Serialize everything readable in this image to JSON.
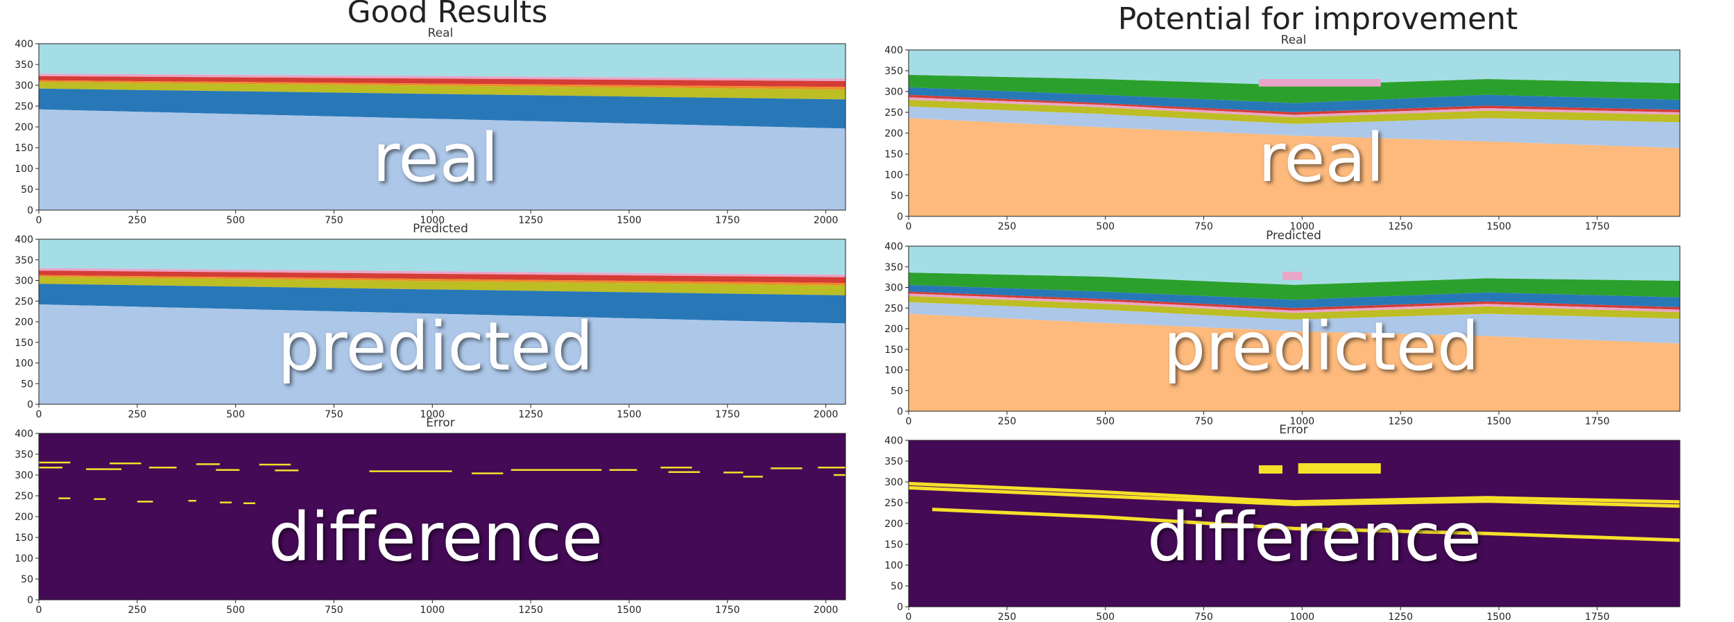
{
  "columns": [
    {
      "title": "Good Results",
      "plots": [
        {
          "subtitle": "Real",
          "overlay": "real"
        },
        {
          "subtitle": "Predicted",
          "overlay": "predicted"
        },
        {
          "subtitle": "Error",
          "overlay": "difference"
        }
      ]
    },
    {
      "title": "Potential for improvement",
      "plots": [
        {
          "subtitle": "Real",
          "overlay": "real"
        },
        {
          "subtitle": "Predicted",
          "overlay": "predicted"
        },
        {
          "subtitle": "Error",
          "overlay": "difference"
        }
      ]
    }
  ],
  "colors": {
    "sky": "#a4dde6",
    "pink": "#e9a5c8",
    "red": "#d43c35",
    "orange": "#f08a2a",
    "yellow": "#bdbd24",
    "darkblue": "#2878b8",
    "lightblue": "#adc7e8",
    "green": "#2ca02c",
    "peach": "#fdba7c",
    "error_bg": "#440a56",
    "error_line": "#f5e02a"
  },
  "chart_data": [
    {
      "type": "heatmap",
      "title": "Real",
      "xlim": [
        0,
        2050
      ],
      "ylim": [
        0,
        400
      ],
      "xticks": [
        0,
        250,
        500,
        750,
        1000,
        1250,
        1500,
        1750,
        2000
      ],
      "yticks": [
        0,
        50,
        100,
        150,
        200,
        250,
        300,
        350,
        400
      ],
      "layers": [
        {
          "color": "sky",
          "x": [
            0,
            2050
          ],
          "top": [
            400,
            400
          ],
          "bottom": [
            328,
            316
          ]
        },
        {
          "color": "pink",
          "x": [
            0,
            2050
          ],
          "top": [
            328,
            316
          ],
          "bottom": [
            322,
            310
          ]
        },
        {
          "color": "red",
          "x": [
            0,
            2050
          ],
          "top": [
            322,
            310
          ],
          "bottom": [
            312,
            296
          ]
        },
        {
          "color": "orange",
          "x": [
            0,
            2050
          ],
          "top": [
            312,
            296
          ],
          "bottom": [
            308,
            290
          ]
        },
        {
          "color": "yellow",
          "x": [
            0,
            2050
          ],
          "top": [
            308,
            290
          ],
          "bottom": [
            292,
            266
          ]
        },
        {
          "color": "darkblue",
          "x": [
            0,
            2050
          ],
          "top": [
            292,
            266
          ],
          "bottom": [
            242,
            196
          ]
        },
        {
          "color": "lightblue",
          "x": [
            0,
            2050
          ],
          "top": [
            242,
            196
          ],
          "bottom": [
            0,
            0
          ]
        }
      ]
    },
    {
      "type": "heatmap",
      "title": "Predicted",
      "xlim": [
        0,
        2050
      ],
      "ylim": [
        0,
        400
      ],
      "xticks": [
        0,
        250,
        500,
        750,
        1000,
        1250,
        1500,
        1750,
        2000
      ],
      "yticks": [
        0,
        50,
        100,
        150,
        200,
        250,
        300,
        350,
        400
      ],
      "layers": [
        {
          "color": "sky",
          "x": [
            0,
            2050
          ],
          "top": [
            400,
            400
          ],
          "bottom": [
            330,
            314
          ]
        },
        {
          "color": "pink",
          "x": [
            0,
            2050
          ],
          "top": [
            330,
            314
          ],
          "bottom": [
            324,
            308
          ]
        },
        {
          "color": "red",
          "x": [
            0,
            2050
          ],
          "top": [
            324,
            308
          ],
          "bottom": [
            313,
            294
          ]
        },
        {
          "color": "orange",
          "x": [
            0,
            2050
          ],
          "top": [
            313,
            294
          ],
          "bottom": [
            309,
            288
          ]
        },
        {
          "color": "yellow",
          "x": [
            0,
            2050
          ],
          "top": [
            309,
            288
          ],
          "bottom": [
            292,
            264
          ]
        },
        {
          "color": "darkblue",
          "x": [
            0,
            2050
          ],
          "top": [
            292,
            264
          ],
          "bottom": [
            242,
            196
          ]
        },
        {
          "color": "lightblue",
          "x": [
            0,
            2050
          ],
          "top": [
            242,
            196
          ],
          "bottom": [
            0,
            0
          ]
        }
      ]
    },
    {
      "type": "heatmap",
      "title": "Error",
      "xlim": [
        0,
        2050
      ],
      "ylim": [
        0,
        400
      ],
      "xticks": [
        0,
        250,
        500,
        750,
        1000,
        1250,
        1500,
        1750,
        2000
      ],
      "yticks": [
        0,
        50,
        100,
        150,
        200,
        250,
        300,
        350,
        400
      ],
      "background": "error_bg",
      "segments": [
        {
          "x": [
            0,
            80
          ],
          "y": 330
        },
        {
          "x": [
            180,
            260
          ],
          "y": 328
        },
        {
          "x": [
            0,
            60
          ],
          "y": 318
        },
        {
          "x": [
            120,
            210
          ],
          "y": 314
        },
        {
          "x": [
            280,
            350
          ],
          "y": 318
        },
        {
          "x": [
            400,
            460
          ],
          "y": 326
        },
        {
          "x": [
            450,
            510
          ],
          "y": 312
        },
        {
          "x": [
            560,
            640
          ],
          "y": 325
        },
        {
          "x": [
            600,
            660
          ],
          "y": 311
        },
        {
          "x": [
            840,
            1050
          ],
          "y": 309
        },
        {
          "x": [
            1100,
            1180
          ],
          "y": 304
        },
        {
          "x": [
            1200,
            1430
          ],
          "y": 312
        },
        {
          "x": [
            1450,
            1520
          ],
          "y": 312
        },
        {
          "x": [
            1580,
            1660
          ],
          "y": 318
        },
        {
          "x": [
            1600,
            1680
          ],
          "y": 307
        },
        {
          "x": [
            1740,
            1790
          ],
          "y": 306
        },
        {
          "x": [
            1790,
            1840
          ],
          "y": 296
        },
        {
          "x": [
            1860,
            1940
          ],
          "y": 316
        },
        {
          "x": [
            1980,
            2050
          ],
          "y": 318
        },
        {
          "x": [
            2020,
            2050
          ],
          "y": 300
        },
        {
          "x": [
            50,
            80
          ],
          "y": 244
        },
        {
          "x": [
            140,
            170
          ],
          "y": 242
        },
        {
          "x": [
            250,
            290
          ],
          "y": 236
        },
        {
          "x": [
            380,
            400
          ],
          "y": 238
        },
        {
          "x": [
            460,
            490
          ],
          "y": 234
        },
        {
          "x": [
            520,
            550
          ],
          "y": 232
        }
      ],
      "patches": []
    },
    {
      "type": "heatmap",
      "title": "Real",
      "xlim": [
        0,
        1960
      ],
      "ylim": [
        0,
        400
      ],
      "xticks": [
        0,
        250,
        500,
        750,
        1000,
        1250,
        1500,
        1750
      ],
      "yticks": [
        0,
        50,
        100,
        150,
        200,
        250,
        300,
        350,
        400
      ],
      "layers": [
        {
          "color": "sky",
          "x": [
            0,
            490,
            980,
            1470,
            1960
          ],
          "top": [
            400,
            400,
            400,
            400,
            400
          ],
          "bottom": [
            340,
            330,
            315,
            330,
            320
          ]
        },
        {
          "color": "green",
          "x": [
            0,
            490,
            980,
            1470,
            1960
          ],
          "top": [
            340,
            330,
            315,
            330,
            320
          ],
          "bottom": [
            310,
            292,
            272,
            292,
            280
          ]
        },
        {
          "color": "darkblue",
          "x": [
            0,
            490,
            980,
            1470,
            1960
          ],
          "top": [
            310,
            292,
            272,
            292,
            280
          ],
          "bottom": [
            292,
            272,
            250,
            266,
            256
          ]
        },
        {
          "color": "red",
          "x": [
            0,
            490,
            980,
            1470,
            1960
          ],
          "top": [
            292,
            272,
            250,
            266,
            256
          ],
          "bottom": [
            286,
            268,
            244,
            260,
            250
          ]
        },
        {
          "color": "pink",
          "x": [
            0,
            490,
            980,
            1470,
            1960
          ],
          "top": [
            286,
            268,
            244,
            260,
            250
          ],
          "bottom": [
            280,
            262,
            238,
            254,
            244
          ]
        },
        {
          "color": "yellow",
          "x": [
            0,
            490,
            980,
            1470,
            1960
          ],
          "top": [
            280,
            262,
            238,
            254,
            244
          ],
          "bottom": [
            264,
            246,
            222,
            236,
            226
          ]
        },
        {
          "color": "lightblue",
          "x": [
            0,
            490,
            980,
            1470,
            1960
          ],
          "top": [
            264,
            246,
            222,
            236,
            226
          ],
          "bottom": [
            236,
            214,
            194,
            180,
            164
          ]
        },
        {
          "color": "peach",
          "x": [
            0,
            490,
            980,
            1470,
            1960
          ],
          "top": [
            236,
            214,
            194,
            180,
            164
          ],
          "bottom": [
            0,
            0,
            0,
            0,
            0
          ]
        }
      ],
      "patches": [
        {
          "color": "pink",
          "x": [
            890,
            1200
          ],
          "y": [
            312,
            330
          ]
        }
      ]
    },
    {
      "type": "heatmap",
      "title": "Predicted",
      "xlim": [
        0,
        1960
      ],
      "ylim": [
        0,
        400
      ],
      "xticks": [
        0,
        250,
        500,
        750,
        1000,
        1250,
        1500,
        1750
      ],
      "yticks": [
        0,
        50,
        100,
        150,
        200,
        250,
        300,
        350,
        400
      ],
      "layers": [
        {
          "color": "sky",
          "x": [
            0,
            490,
            980,
            1470,
            1960
          ],
          "top": [
            400,
            400,
            400,
            400,
            400
          ],
          "bottom": [
            336,
            326,
            306,
            322,
            316
          ]
        },
        {
          "color": "green",
          "x": [
            0,
            490,
            980,
            1470,
            1960
          ],
          "top": [
            336,
            326,
            306,
            322,
            316
          ],
          "bottom": [
            306,
            290,
            270,
            288,
            276
          ]
        },
        {
          "color": "darkblue",
          "x": [
            0,
            490,
            980,
            1470,
            1960
          ],
          "top": [
            306,
            290,
            270,
            288,
            276
          ],
          "bottom": [
            290,
            272,
            250,
            266,
            252
          ]
        },
        {
          "color": "red",
          "x": [
            0,
            490,
            980,
            1470,
            1960
          ],
          "top": [
            290,
            272,
            250,
            266,
            252
          ],
          "bottom": [
            285,
            267,
            244,
            260,
            246
          ]
        },
        {
          "color": "pink",
          "x": [
            0,
            490,
            980,
            1470,
            1960
          ],
          "top": [
            285,
            267,
            244,
            260,
            246
          ],
          "bottom": [
            279,
            261,
            238,
            254,
            240
          ]
        },
        {
          "color": "yellow",
          "x": [
            0,
            490,
            980,
            1470,
            1960
          ],
          "top": [
            279,
            261,
            238,
            254,
            240
          ],
          "bottom": [
            264,
            246,
            222,
            236,
            224
          ]
        },
        {
          "color": "lightblue",
          "x": [
            0,
            490,
            980,
            1470,
            1960
          ],
          "top": [
            264,
            246,
            222,
            236,
            224
          ],
          "bottom": [
            236,
            214,
            194,
            182,
            164
          ]
        },
        {
          "color": "peach",
          "x": [
            0,
            490,
            980,
            1470,
            1960
          ],
          "top": [
            236,
            214,
            194,
            182,
            164
          ],
          "bottom": [
            0,
            0,
            0,
            0,
            0
          ]
        }
      ],
      "patches": [
        {
          "color": "pink",
          "x": [
            950,
            1000
          ],
          "y": [
            318,
            338
          ]
        }
      ]
    },
    {
      "type": "heatmap",
      "title": "Error",
      "xlim": [
        0,
        1960
      ],
      "ylim": [
        0,
        400
      ],
      "xticks": [
        0,
        250,
        500,
        750,
        1000,
        1250,
        1500,
        1750
      ],
      "yticks": [
        0,
        50,
        100,
        150,
        200,
        250,
        300,
        350,
        400
      ],
      "background": "error_bg",
      "polylines": [
        {
          "x": [
            0,
            490,
            980,
            1470,
            1960
          ],
          "y": [
            296,
            276,
            252,
            262,
            252
          ]
        },
        {
          "x": [
            0,
            490,
            980,
            1470,
            1960
          ],
          "y": [
            286,
            266,
            246,
            254,
            242
          ]
        },
        {
          "x": [
            60,
            490,
            980,
            1470,
            1960
          ],
          "y": [
            234,
            216,
            188,
            176,
            160
          ]
        }
      ],
      "patches": [
        {
          "color": "error_line",
          "x": [
            890,
            950
          ],
          "y": [
            320,
            340
          ]
        },
        {
          "color": "error_line",
          "x": [
            990,
            1200
          ],
          "y": [
            320,
            345
          ]
        }
      ]
    }
  ]
}
